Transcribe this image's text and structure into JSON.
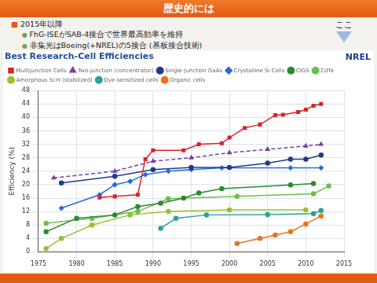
{
  "slide": {
    "title": "歴史的には",
    "bullets": [
      {
        "text": "2015年以降",
        "level": 0
      },
      {
        "text": "FhG-ISEがSAB-4接合で世界最高効率を維持",
        "level": 1
      },
      {
        "text": "非集光はBoeing(+NREL)の5接合 (基板接合技術)",
        "level": 1
      }
    ],
    "note": "ここ"
  },
  "chart_data": {
    "type": "line",
    "title": "Best Research-Cell Efficiencies",
    "x_label": "",
    "y_label": "Efficiency (%)",
    "annotations": [
      "NREL"
    ],
    "xlim": [
      1975,
      2015
    ],
    "xticks": [
      1975,
      1980,
      1985,
      1990,
      1995,
      2000,
      2005,
      2010,
      2015
    ],
    "ylim": [
      0,
      48
    ],
    "yticks": [
      0,
      4,
      8,
      12,
      16,
      20,
      24,
      28,
      32,
      36,
      40,
      44,
      48
    ],
    "grid": true,
    "legend": "top",
    "series": [
      {
        "name": "Multijunction Cells",
        "color": "#d7262b",
        "marker": "square",
        "line_style": "solid",
        "x": [
          1983,
          1985,
          1988,
          1989,
          1990,
          1994,
          1996,
          1999,
          2000,
          2002,
          2004,
          2006,
          2007,
          2009,
          2010,
          2011,
          2012
        ],
        "values": [
          16.2,
          16.5,
          17,
          27.6,
          30.2,
          30.2,
          32,
          32.3,
          34,
          36.9,
          37.9,
          40.7,
          40.8,
          41.6,
          42.3,
          43.5,
          44
        ]
      },
      {
        "name": "Two-junction (concentrator)",
        "color": "#7b3fa0",
        "marker": "triangle",
        "line_style": "dashed",
        "x": [
          1977,
          1985,
          1990,
          1995,
          2000,
          2005,
          2010,
          2012
        ],
        "values": [
          22,
          24,
          27,
          28,
          29.5,
          30.5,
          31.5,
          32
        ]
      },
      {
        "name": "Single-Junction GaAs",
        "color": "#1f3b8c",
        "marker": "circle",
        "line_style": "solid",
        "x": [
          1978,
          1985,
          1990,
          1995,
          2000,
          2005,
          2008,
          2010,
          2012
        ],
        "values": [
          20.5,
          22.5,
          24.5,
          25.1,
          25.1,
          26.4,
          27.6,
          27.6,
          28.8
        ]
      },
      {
        "name": "Crystalline Si Cells",
        "color": "#2a6bd6",
        "marker": "diamond",
        "line_style": "solid",
        "x": [
          1978,
          1983,
          1985,
          1987,
          1989,
          1992,
          1995,
          1999,
          2008,
          2012
        ],
        "values": [
          13,
          17,
          20,
          21,
          23,
          24,
          24.5,
          25,
          25,
          25
        ]
      },
      {
        "name": "CIGS",
        "color": "#2d8a2d",
        "marker": "circle",
        "line_style": "solid",
        "x": [
          1976,
          1980,
          1985,
          1988,
          1991,
          1994,
          1996,
          1999,
          2008,
          2011
        ],
        "values": [
          6,
          10,
          11,
          13.5,
          14.5,
          16,
          17.5,
          18.8,
          19.9,
          20.3
        ]
      },
      {
        "name": "CdTe",
        "color": "#6ac14a",
        "marker": "circle",
        "line_style": "solid",
        "x": [
          1976,
          1982,
          1988,
          1992,
          2001,
          2011,
          2013
        ],
        "values": [
          8.5,
          10,
          12,
          15.8,
          16.5,
          17.3,
          19.6
        ]
      },
      {
        "name": "Amorphous Si:H (stabilized)",
        "color": "#9bbf2e",
        "marker": "circle",
        "line_style": "solid",
        "x": [
          1976,
          1978,
          1982,
          1987,
          1992,
          2000,
          2010
        ],
        "values": [
          1,
          4,
          8,
          11,
          12,
          12.5,
          12.5
        ]
      },
      {
        "name": "Dye-sensitized cells",
        "color": "#28a0a0",
        "marker": "circle",
        "line_style": "solid",
        "x": [
          1991,
          1993,
          1997,
          2005,
          2011,
          2012
        ],
        "values": [
          7,
          10,
          11,
          11.1,
          11.4,
          12.3
        ]
      },
      {
        "name": "Organic cells",
        "color": "#e8741e",
        "marker": "circle",
        "line_style": "solid",
        "x": [
          2001,
          2004,
          2006,
          2008,
          2010,
          2012
        ],
        "values": [
          2.5,
          4,
          5,
          6,
          8.3,
          10.7
        ]
      }
    ]
  }
}
